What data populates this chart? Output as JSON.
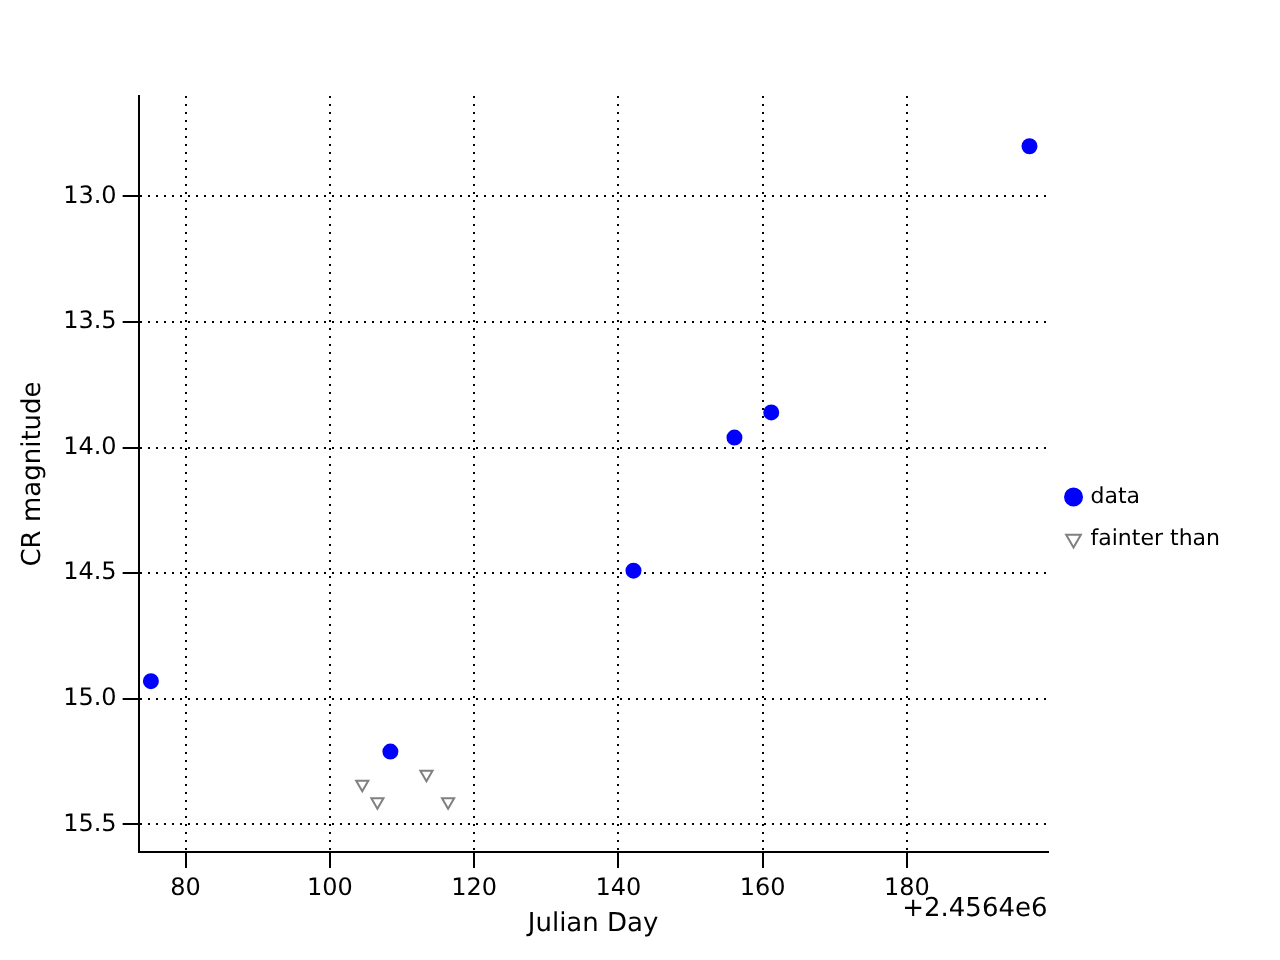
{
  "chart_data": {
    "type": "scatter",
    "xlabel": "Julian Day",
    "ylabel": "CR magnitude",
    "series": [
      {
        "name": "data",
        "color": "#0000ff",
        "marker": "circle",
        "x": [
          75.2,
          108.4,
          142.1,
          156.1,
          161.2,
          197.0
        ],
        "values": [
          14.93,
          15.21,
          14.49,
          13.96,
          13.86,
          12.8
        ]
      },
      {
        "name": "fainter than",
        "color": "#808080",
        "marker": "triangle",
        "x": [
          104.5,
          106.6,
          113.4,
          116.4
        ],
        "values": [
          15.34,
          15.41,
          15.3,
          15.41
        ]
      }
    ],
    "xlim": [
      73.5,
      199.5
    ],
    "xticks": [
      80,
      100,
      120,
      140,
      160,
      180
    ],
    "ylim": [
      15.61,
      12.6
    ],
    "yticks": [
      {
        "value": 13,
        "label": "13.0"
      },
      13.5,
      {
        "value": 14,
        "label": "14.0"
      },
      14.5,
      {
        "value": 15,
        "label": "15.0"
      },
      15.5
    ],
    "grid": true,
    "legend": "right",
    "annotations": [
      "+2.4564e6"
    ]
  }
}
